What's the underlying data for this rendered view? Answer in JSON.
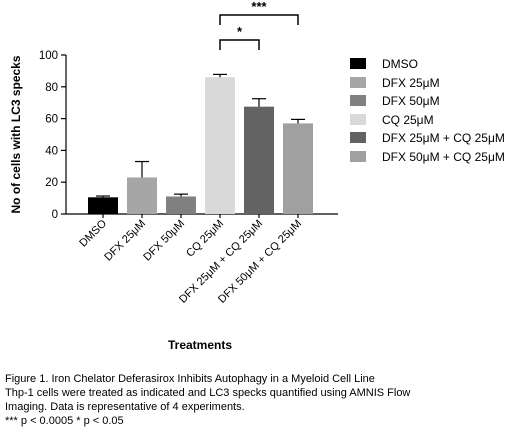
{
  "chart_data": {
    "type": "bar",
    "title": "",
    "xlabel": "Treatments",
    "ylabel": "No of cells with LC3 specks",
    "ylim": [
      0,
      100
    ],
    "yticks": [
      0,
      20,
      40,
      60,
      80,
      100
    ],
    "categories": [
      "DMSO",
      "DFX 25μM",
      "DFX 50μM",
      "CQ 25μM",
      "DFX 25μM + CQ 25μM",
      "DFX 50μM + CQ 25μM"
    ],
    "values": [
      10.5,
      23,
      11,
      86,
      67.5,
      57
    ],
    "errors": [
      0.8,
      10,
      1.5,
      1.8,
      5,
      2.5
    ],
    "colors": [
      "#000000",
      "#a6a6a6",
      "#808080",
      "#d9d9d9",
      "#636363",
      "#a0a0a0"
    ],
    "legend": [
      "DMSO",
      "DFX 25μM",
      "DFX 50μM",
      "CQ 25μM",
      "DFX 25μM + CQ 25μM",
      "DFX 50μM + CQ 25μM"
    ],
    "legend_position": "right",
    "grid": false,
    "significance": [
      {
        "from": "CQ 25μM",
        "to": "DFX 25μM + CQ 25μM",
        "label": "*"
      },
      {
        "from": "CQ 25μM",
        "to": "DFX 50μM + CQ 25μM",
        "label": "***"
      }
    ]
  },
  "caption": {
    "line1": "Figure 1. Iron Chelator Deferasirox Inhibits Autophagy in a Myeloid Cell Line",
    "line2": "Thp-1 cells were treated as indicated and LC3 specks quantified using AMNIS Flow",
    "line3": "Imaging. Data is representative of 4 experiments.",
    "line4": "*** p < 0.0005   * p < 0.05"
  }
}
